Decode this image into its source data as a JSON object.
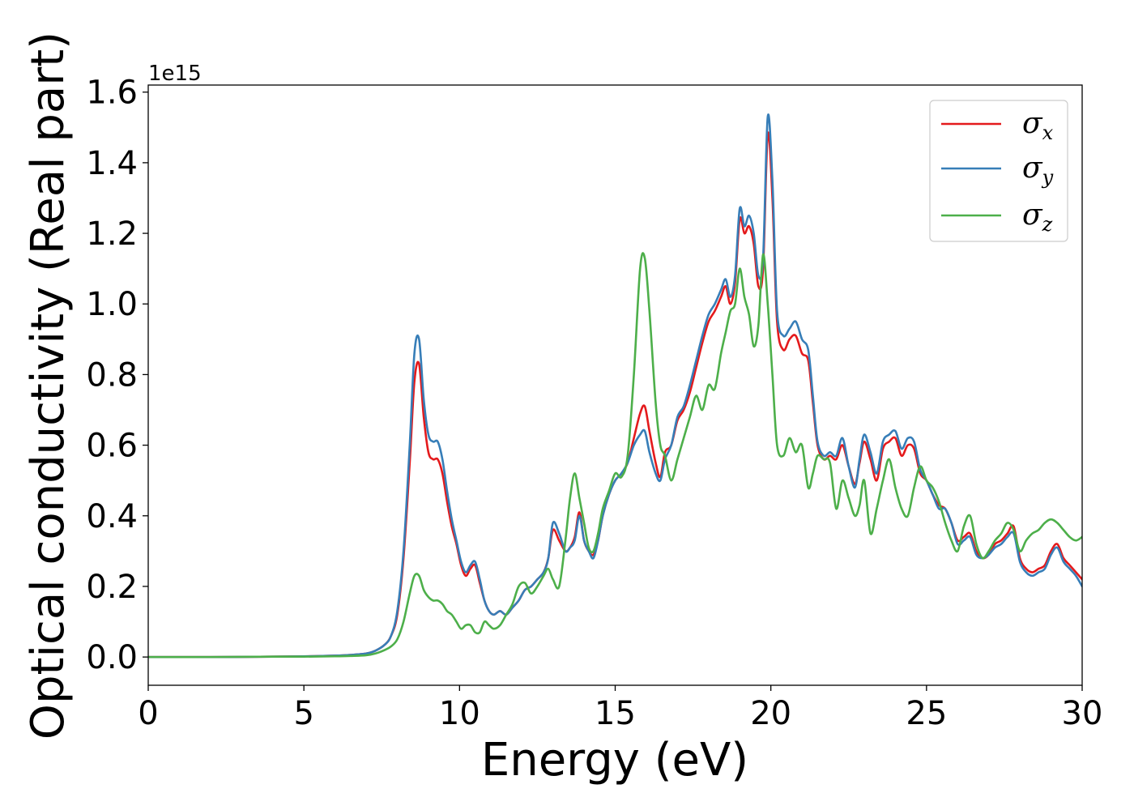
{
  "chart_data": {
    "type": "line",
    "title": "",
    "xlabel": "Energy (eV)",
    "ylabel": "Optical conductivity (Real part)",
    "y_offset_label": "1e15",
    "xlim": [
      0,
      30
    ],
    "ylim": [
      -0.08,
      1.62
    ],
    "x_ticks": [
      0,
      5,
      10,
      15,
      20,
      25,
      30
    ],
    "x_tick_labels": [
      "0",
      "5",
      "10",
      "15",
      "20",
      "25",
      "30"
    ],
    "y_ticks": [
      0.0,
      0.2,
      0.4,
      0.6,
      0.8,
      1.0,
      1.2,
      1.4,
      1.6
    ],
    "y_tick_labels": [
      "0.0",
      "0.2",
      "0.4",
      "0.6",
      "0.8",
      "1.0",
      "1.2",
      "1.4",
      "1.6"
    ],
    "grid": false,
    "legend_position": "top-right",
    "colors": {
      "sigma_x": "#e41a1c",
      "sigma_y": "#377eb8",
      "sigma_z": "#4daf4a",
      "axes": "#000000",
      "legend_border": "#cccccc"
    },
    "series": [
      {
        "name": "σx",
        "symbol": "σ",
        "subscript": "x",
        "color": "#e41a1c",
        "x": [
          0,
          2,
          4,
          5,
          6,
          6.5,
          7,
          7.3,
          7.6,
          7.8,
          8.0,
          8.2,
          8.4,
          8.55,
          8.7,
          8.85,
          9.0,
          9.15,
          9.3,
          9.45,
          9.6,
          9.75,
          9.9,
          10.05,
          10.2,
          10.35,
          10.5,
          10.65,
          10.8,
          10.95,
          11.1,
          11.3,
          11.5,
          11.7,
          11.9,
          12.1,
          12.3,
          12.5,
          12.7,
          12.85,
          13.0,
          13.2,
          13.4,
          13.55,
          13.7,
          13.85,
          14.0,
          14.15,
          14.3,
          14.45,
          14.6,
          14.8,
          15.0,
          15.2,
          15.4,
          15.6,
          15.8,
          15.95,
          16.1,
          16.3,
          16.45,
          16.6,
          16.8,
          17.0,
          17.2,
          17.4,
          17.6,
          17.8,
          18.0,
          18.2,
          18.4,
          18.55,
          18.7,
          18.85,
          19.0,
          19.15,
          19.3,
          19.45,
          19.6,
          19.75,
          19.9,
          20.05,
          20.2,
          20.4,
          20.6,
          20.8,
          21.0,
          21.2,
          21.35,
          21.5,
          21.7,
          21.9,
          22.1,
          22.3,
          22.5,
          22.7,
          22.85,
          23.0,
          23.2,
          23.4,
          23.6,
          23.8,
          24.0,
          24.2,
          24.4,
          24.6,
          24.8,
          25.0,
          25.2,
          25.4,
          25.6,
          25.8,
          26.0,
          26.2,
          26.4,
          26.6,
          26.8,
          27.0,
          27.2,
          27.4,
          27.6,
          27.8,
          28.0,
          28.2,
          28.4,
          28.6,
          28.8,
          29.0,
          29.2,
          29.4,
          29.6,
          29.8,
          30.0
        ],
        "values": [
          0,
          0,
          0.001,
          0.002,
          0.004,
          0.006,
          0.01,
          0.018,
          0.035,
          0.06,
          0.12,
          0.28,
          0.55,
          0.78,
          0.83,
          0.68,
          0.58,
          0.56,
          0.56,
          0.52,
          0.44,
          0.37,
          0.32,
          0.26,
          0.23,
          0.25,
          0.26,
          0.21,
          0.16,
          0.13,
          0.12,
          0.13,
          0.12,
          0.14,
          0.16,
          0.19,
          0.2,
          0.22,
          0.24,
          0.28,
          0.36,
          0.33,
          0.3,
          0.31,
          0.34,
          0.41,
          0.33,
          0.3,
          0.29,
          0.33,
          0.4,
          0.46,
          0.5,
          0.52,
          0.55,
          0.62,
          0.69,
          0.71,
          0.64,
          0.55,
          0.51,
          0.58,
          0.6,
          0.67,
          0.7,
          0.75,
          0.82,
          0.89,
          0.95,
          0.98,
          1.02,
          1.05,
          1.0,
          1.06,
          1.24,
          1.2,
          1.22,
          1.17,
          1.05,
          1.1,
          1.48,
          1.3,
          0.95,
          0.87,
          0.9,
          0.91,
          0.86,
          0.84,
          0.72,
          0.6,
          0.56,
          0.57,
          0.56,
          0.6,
          0.54,
          0.49,
          0.55,
          0.61,
          0.56,
          0.5,
          0.59,
          0.61,
          0.62,
          0.57,
          0.6,
          0.59,
          0.52,
          0.5,
          0.46,
          0.43,
          0.42,
          0.38,
          0.33,
          0.34,
          0.35,
          0.3,
          0.28,
          0.29,
          0.32,
          0.33,
          0.35,
          0.37,
          0.28,
          0.25,
          0.24,
          0.25,
          0.26,
          0.3,
          0.32,
          0.28,
          0.26,
          0.24,
          0.22
        ]
      },
      {
        "name": "σy",
        "symbol": "σ",
        "subscript": "y",
        "color": "#377eb8",
        "x": [
          0,
          2,
          4,
          5,
          6,
          6.5,
          7,
          7.3,
          7.6,
          7.8,
          8.0,
          8.2,
          8.4,
          8.55,
          8.7,
          8.85,
          9.0,
          9.15,
          9.3,
          9.45,
          9.6,
          9.75,
          9.9,
          10.05,
          10.2,
          10.35,
          10.5,
          10.65,
          10.8,
          10.95,
          11.1,
          11.3,
          11.5,
          11.7,
          11.9,
          12.1,
          12.3,
          12.5,
          12.7,
          12.85,
          13.0,
          13.2,
          13.4,
          13.55,
          13.7,
          13.85,
          14.0,
          14.15,
          14.3,
          14.45,
          14.6,
          14.8,
          15.0,
          15.2,
          15.4,
          15.6,
          15.8,
          15.95,
          16.1,
          16.3,
          16.45,
          16.6,
          16.8,
          17.0,
          17.2,
          17.4,
          17.6,
          17.8,
          18.0,
          18.2,
          18.4,
          18.55,
          18.7,
          18.85,
          19.0,
          19.15,
          19.3,
          19.45,
          19.6,
          19.75,
          19.9,
          20.05,
          20.2,
          20.4,
          20.6,
          20.8,
          21.0,
          21.2,
          21.35,
          21.5,
          21.7,
          21.9,
          22.1,
          22.3,
          22.5,
          22.7,
          22.85,
          23.0,
          23.2,
          23.4,
          23.6,
          23.8,
          24.0,
          24.2,
          24.4,
          24.6,
          24.8,
          25.0,
          25.2,
          25.4,
          25.6,
          25.8,
          26.0,
          26.2,
          26.4,
          26.6,
          26.8,
          27.0,
          27.2,
          27.4,
          27.6,
          27.8,
          28.0,
          28.2,
          28.4,
          28.6,
          28.8,
          29.0,
          29.2,
          29.4,
          29.6,
          29.8,
          30.0
        ],
        "values": [
          0,
          0,
          0.001,
          0.002,
          0.004,
          0.006,
          0.01,
          0.018,
          0.035,
          0.06,
          0.13,
          0.3,
          0.6,
          0.86,
          0.9,
          0.73,
          0.63,
          0.61,
          0.61,
          0.56,
          0.47,
          0.39,
          0.33,
          0.27,
          0.24,
          0.26,
          0.27,
          0.22,
          0.16,
          0.13,
          0.12,
          0.13,
          0.12,
          0.14,
          0.16,
          0.19,
          0.2,
          0.22,
          0.24,
          0.28,
          0.38,
          0.35,
          0.3,
          0.31,
          0.33,
          0.4,
          0.33,
          0.3,
          0.28,
          0.33,
          0.4,
          0.46,
          0.5,
          0.52,
          0.55,
          0.6,
          0.63,
          0.64,
          0.58,
          0.52,
          0.5,
          0.56,
          0.6,
          0.68,
          0.71,
          0.77,
          0.84,
          0.91,
          0.97,
          1.0,
          1.04,
          1.07,
          1.02,
          1.08,
          1.27,
          1.22,
          1.25,
          1.2,
          1.08,
          1.13,
          1.53,
          1.35,
          0.98,
          0.91,
          0.93,
          0.95,
          0.9,
          0.87,
          0.74,
          0.61,
          0.57,
          0.58,
          0.57,
          0.62,
          0.54,
          0.48,
          0.56,
          0.63,
          0.58,
          0.52,
          0.61,
          0.63,
          0.64,
          0.59,
          0.62,
          0.61,
          0.53,
          0.5,
          0.46,
          0.42,
          0.42,
          0.38,
          0.32,
          0.33,
          0.34,
          0.29,
          0.28,
          0.29,
          0.31,
          0.32,
          0.34,
          0.35,
          0.27,
          0.24,
          0.23,
          0.24,
          0.25,
          0.29,
          0.31,
          0.27,
          0.25,
          0.23,
          0.2
        ]
      },
      {
        "name": "σz",
        "symbol": "σ",
        "subscript": "z",
        "color": "#4daf4a",
        "x": [
          0,
          2,
          4,
          5,
          6,
          6.5,
          7,
          7.3,
          7.6,
          7.8,
          8.0,
          8.2,
          8.4,
          8.55,
          8.7,
          8.85,
          9.0,
          9.15,
          9.3,
          9.45,
          9.6,
          9.75,
          9.9,
          10.05,
          10.2,
          10.35,
          10.5,
          10.65,
          10.8,
          10.95,
          11.1,
          11.3,
          11.5,
          11.7,
          11.9,
          12.1,
          12.3,
          12.5,
          12.7,
          12.85,
          13.0,
          13.2,
          13.4,
          13.55,
          13.7,
          13.85,
          14.0,
          14.15,
          14.3,
          14.45,
          14.6,
          14.8,
          15.0,
          15.2,
          15.4,
          15.6,
          15.8,
          15.95,
          16.1,
          16.3,
          16.45,
          16.6,
          16.8,
          17.0,
          17.2,
          17.4,
          17.6,
          17.8,
          18.0,
          18.2,
          18.4,
          18.55,
          18.7,
          18.85,
          19.0,
          19.15,
          19.3,
          19.45,
          19.6,
          19.75,
          19.9,
          20.05,
          20.2,
          20.4,
          20.6,
          20.8,
          21.0,
          21.2,
          21.35,
          21.5,
          21.7,
          21.9,
          22.1,
          22.3,
          22.5,
          22.7,
          22.85,
          23.0,
          23.2,
          23.4,
          23.6,
          23.8,
          24.0,
          24.2,
          24.4,
          24.6,
          24.8,
          25.0,
          25.2,
          25.4,
          25.6,
          25.8,
          26.0,
          26.2,
          26.4,
          26.6,
          26.8,
          27.0,
          27.2,
          27.4,
          27.6,
          27.8,
          28.0,
          28.2,
          28.4,
          28.6,
          28.8,
          29.0,
          29.2,
          29.4,
          29.6,
          29.8,
          30.0
        ],
        "values": [
          0,
          0,
          0.001,
          0.001,
          0.002,
          0.003,
          0.005,
          0.01,
          0.02,
          0.03,
          0.05,
          0.1,
          0.18,
          0.23,
          0.23,
          0.19,
          0.17,
          0.16,
          0.16,
          0.15,
          0.13,
          0.12,
          0.1,
          0.08,
          0.09,
          0.09,
          0.07,
          0.07,
          0.1,
          0.09,
          0.08,
          0.09,
          0.12,
          0.15,
          0.2,
          0.21,
          0.18,
          0.2,
          0.23,
          0.25,
          0.22,
          0.2,
          0.33,
          0.45,
          0.52,
          0.45,
          0.38,
          0.31,
          0.3,
          0.35,
          0.42,
          0.47,
          0.52,
          0.51,
          0.57,
          0.8,
          1.1,
          1.13,
          0.98,
          0.72,
          0.6,
          0.57,
          0.5,
          0.56,
          0.62,
          0.68,
          0.74,
          0.7,
          0.77,
          0.76,
          0.86,
          0.92,
          0.98,
          1.0,
          1.1,
          1.02,
          0.97,
          0.88,
          0.94,
          1.14,
          1.0,
          0.8,
          0.6,
          0.57,
          0.62,
          0.58,
          0.6,
          0.48,
          0.52,
          0.57,
          0.56,
          0.55,
          0.42,
          0.5,
          0.45,
          0.4,
          0.43,
          0.5,
          0.35,
          0.42,
          0.5,
          0.56,
          0.48,
          0.42,
          0.4,
          0.48,
          0.54,
          0.5,
          0.48,
          0.44,
          0.38,
          0.33,
          0.3,
          0.37,
          0.4,
          0.32,
          0.28,
          0.3,
          0.33,
          0.35,
          0.38,
          0.36,
          0.3,
          0.33,
          0.35,
          0.36,
          0.38,
          0.39,
          0.38,
          0.36,
          0.34,
          0.33,
          0.34
        ]
      }
    ]
  }
}
